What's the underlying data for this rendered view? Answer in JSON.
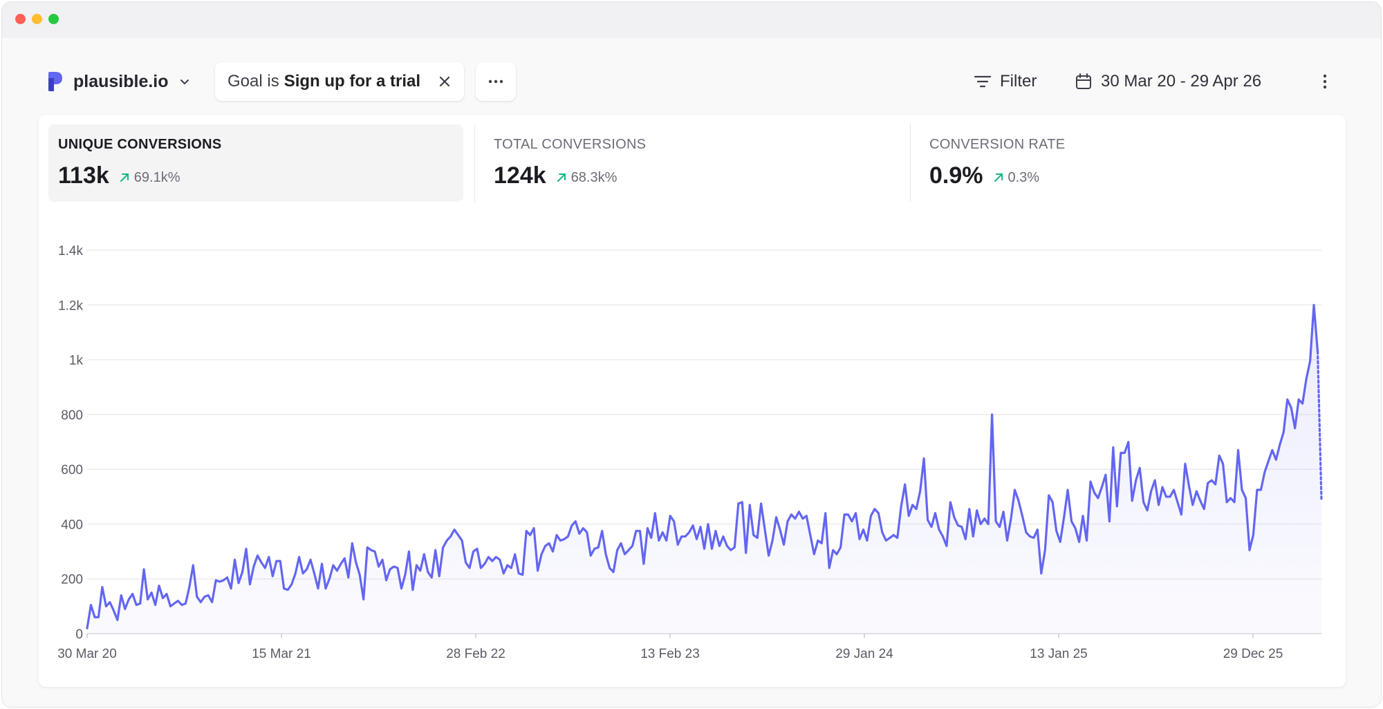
{
  "site": {
    "name": "plausible.io"
  },
  "goal_filter": {
    "prefix": "Goal is",
    "value": "Sign up for a trial"
  },
  "more_label": "···",
  "filter_label": "Filter",
  "date_range": "30 Mar 20 - 29 Apr 26",
  "metrics": [
    {
      "label": "UNIQUE CONVERSIONS",
      "value": "113k",
      "change": "69.1k%",
      "trend": "up",
      "selected": true
    },
    {
      "label": "TOTAL CONVERSIONS",
      "value": "124k",
      "change": "68.3k%",
      "trend": "up",
      "selected": false
    },
    {
      "label": "CONVERSION RATE",
      "value": "0.9%",
      "change": "0.3%",
      "trend": "up",
      "selected": false
    }
  ],
  "colors": {
    "accent": "#6366f1",
    "trend_up": "#10b981",
    "text": "#1b1c22",
    "muted": "#6b6c77"
  },
  "chart_data": {
    "type": "line",
    "title": "",
    "xlabel": "",
    "ylabel": "",
    "x_ticks": [
      "30 Mar 20",
      "15 Mar 21",
      "28 Feb 22",
      "13 Feb 23",
      "29 Jan 24",
      "13 Jan 25",
      "29 Dec 25"
    ],
    "y_ticks": [
      "0",
      "200",
      "400",
      "600",
      "800",
      "1k",
      "1.2k",
      "1.4k"
    ],
    "ylim": [
      0,
      1400
    ],
    "x_start": "30 Mar 20",
    "x_end": "29 Apr 26",
    "interval": "weekly",
    "area_fill": true,
    "last_point_incomplete": true,
    "series": [
      {
        "values": [
          20,
          105,
          60,
          60,
          170,
          100,
          115,
          85,
          50,
          140,
          90,
          125,
          145,
          105,
          110,
          235,
          125,
          150,
          105,
          175,
          130,
          145,
          100,
          110,
          120,
          105,
          110,
          170,
          250,
          135,
          115,
          135,
          140,
          115,
          195,
          190,
          195,
          205,
          165,
          270,
          185,
          225,
          310,
          180,
          245,
          285,
          260,
          240,
          280,
          210,
          265,
          265,
          165,
          160,
          180,
          220,
          280,
          220,
          235,
          270,
          220,
          165,
          255,
          165,
          200,
          250,
          230,
          255,
          275,
          205,
          330,
          260,
          215,
          125,
          315,
          305,
          300,
          245,
          270,
          195,
          235,
          245,
          240,
          165,
          215,
          300,
          160,
          250,
          230,
          290,
          225,
          205,
          305,
          210,
          315,
          340,
          355,
          380,
          360,
          340,
          260,
          240,
          300,
          310,
          240,
          255,
          280,
          265,
          280,
          270,
          220,
          250,
          240,
          290,
          220,
          215,
          375,
          360,
          385,
          230,
          290,
          320,
          330,
          300,
          360,
          340,
          345,
          355,
          395,
          410,
          365,
          385,
          370,
          285,
          310,
          315,
          375,
          290,
          240,
          225,
          305,
          330,
          290,
          305,
          320,
          375,
          375,
          255,
          385,
          350,
          440,
          340,
          370,
          340,
          430,
          410,
          325,
          355,
          355,
          370,
          395,
          345,
          390,
          310,
          400,
          310,
          375,
          320,
          355,
          320,
          305,
          315,
          475,
          480,
          295,
          470,
          360,
          350,
          475,
          380,
          285,
          340,
          425,
          380,
          325,
          410,
          435,
          420,
          445,
          420,
          430,
          360,
          290,
          340,
          330,
          440,
          240,
          305,
          290,
          315,
          435,
          435,
          410,
          440,
          345,
          380,
          340,
          430,
          455,
          440,
          370,
          340,
          350,
          360,
          350,
          465,
          545,
          430,
          470,
          455,
          520,
          640,
          415,
          390,
          440,
          380,
          355,
          320,
          480,
          425,
          395,
          390,
          345,
          455,
          355,
          450,
          400,
          420,
          400,
          800,
          410,
          390,
          445,
          340,
          420,
          525,
          485,
          430,
          370,
          355,
          350,
          380,
          220,
          305,
          505,
          480,
          375,
          335,
          425,
          525,
          410,
          385,
          335,
          430,
          340,
          555,
          515,
          495,
          535,
          580,
          410,
          680,
          465,
          660,
          660,
          700,
          485,
          560,
          605,
          480,
          450,
          520,
          560,
          470,
          535,
          500,
          500,
          525,
          480,
          435,
          620,
          540,
          470,
          520,
          485,
          455,
          550,
          560,
          545,
          650,
          620,
          480,
          495,
          480,
          670,
          525,
          495,
          305,
          360,
          525,
          525,
          590,
          630,
          670,
          635,
          690,
          735,
          855,
          825,
          750,
          855,
          840,
          930,
          995,
          1200,
          1030,
          490
        ]
      }
    ]
  }
}
